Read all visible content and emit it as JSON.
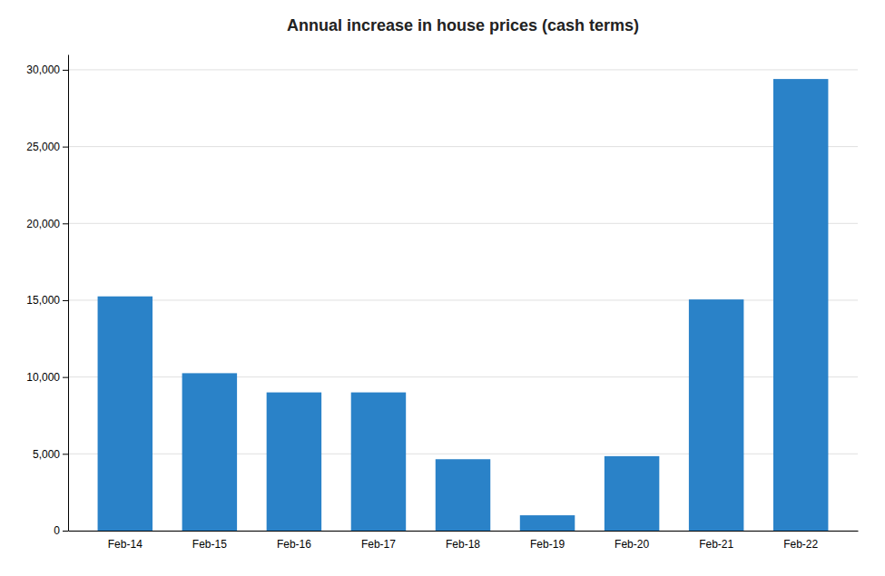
{
  "chart_data": {
    "type": "bar",
    "title": "Annual increase in house prices (cash terms)",
    "categories": [
      "Feb-14",
      "Feb-15",
      "Feb-16",
      "Feb-17",
      "Feb-18",
      "Feb-19",
      "Feb-20",
      "Feb-21",
      "Feb-22"
    ],
    "values": [
      15250,
      10250,
      9000,
      9000,
      4650,
      1000,
      4850,
      15050,
      29400
    ],
    "color": "#2a82c8",
    "ylim": [
      0,
      31000
    ],
    "yticks": [
      0,
      {
        "value": 5000,
        "label": "5,000"
      },
      {
        "value": 10000,
        "label": "10,000"
      },
      {
        "value": 15000,
        "label": "15,000"
      },
      {
        "value": 20000,
        "label": "20,000"
      },
      {
        "value": 25000,
        "label": "25,000"
      },
      {
        "value": 30000,
        "label": "30,000"
      }
    ],
    "grid": true
  }
}
